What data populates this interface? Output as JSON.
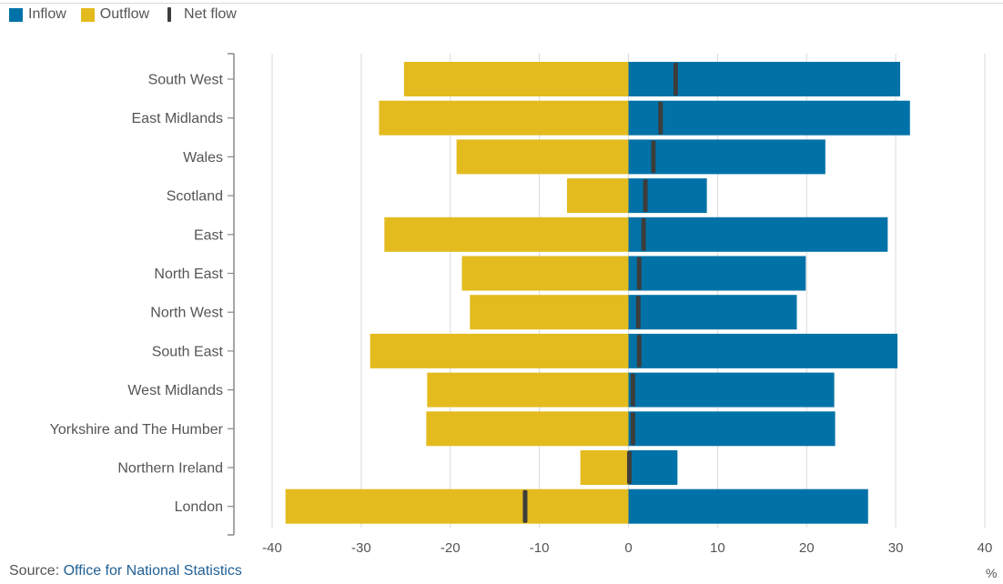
{
  "legend": {
    "inflow_label": "Inflow",
    "outflow_label": "Outflow",
    "net_label": "Net flow"
  },
  "source": {
    "prefix": "Source: ",
    "link_text": "Office for National Statistics"
  },
  "unit_label": "%",
  "colors": {
    "inflow": "#0072a7",
    "outflow": "#e3bb1f",
    "net": "#3d3d3d",
    "grid": "#d9d9d9"
  },
  "chart_data": {
    "type": "bar",
    "orientation": "horizontal",
    "title": "",
    "xlabel": "",
    "ylabel": "",
    "unit": "%",
    "xlim": [
      -40,
      40
    ],
    "x_ticks": [
      -40,
      -30,
      -20,
      -10,
      0,
      10,
      20,
      30,
      40
    ],
    "grid": true,
    "legend_position": "top-left",
    "categories": [
      "South West",
      "East Midlands",
      "Wales",
      "Scotland",
      "East",
      "North East",
      "North West",
      "South East",
      "West Midlands",
      "Yorkshire and The Humber",
      "Northern Ireland",
      "London"
    ],
    "series": [
      {
        "name": "Inflow",
        "values": [
          30.5,
          31.6,
          22.1,
          8.8,
          29.1,
          19.9,
          18.9,
          30.2,
          23.1,
          23.2,
          5.5,
          26.9
        ]
      },
      {
        "name": "Outflow",
        "values": [
          -25.2,
          -28.0,
          -19.3,
          -6.9,
          -27.4,
          -18.7,
          -17.8,
          -29.0,
          -22.6,
          -22.7,
          -5.4,
          -38.5
        ]
      },
      {
        "name": "Net flow",
        "values": [
          5.3,
          3.6,
          2.8,
          1.9,
          1.7,
          1.2,
          1.1,
          1.2,
          0.5,
          0.5,
          0.1,
          -11.6
        ]
      }
    ]
  }
}
